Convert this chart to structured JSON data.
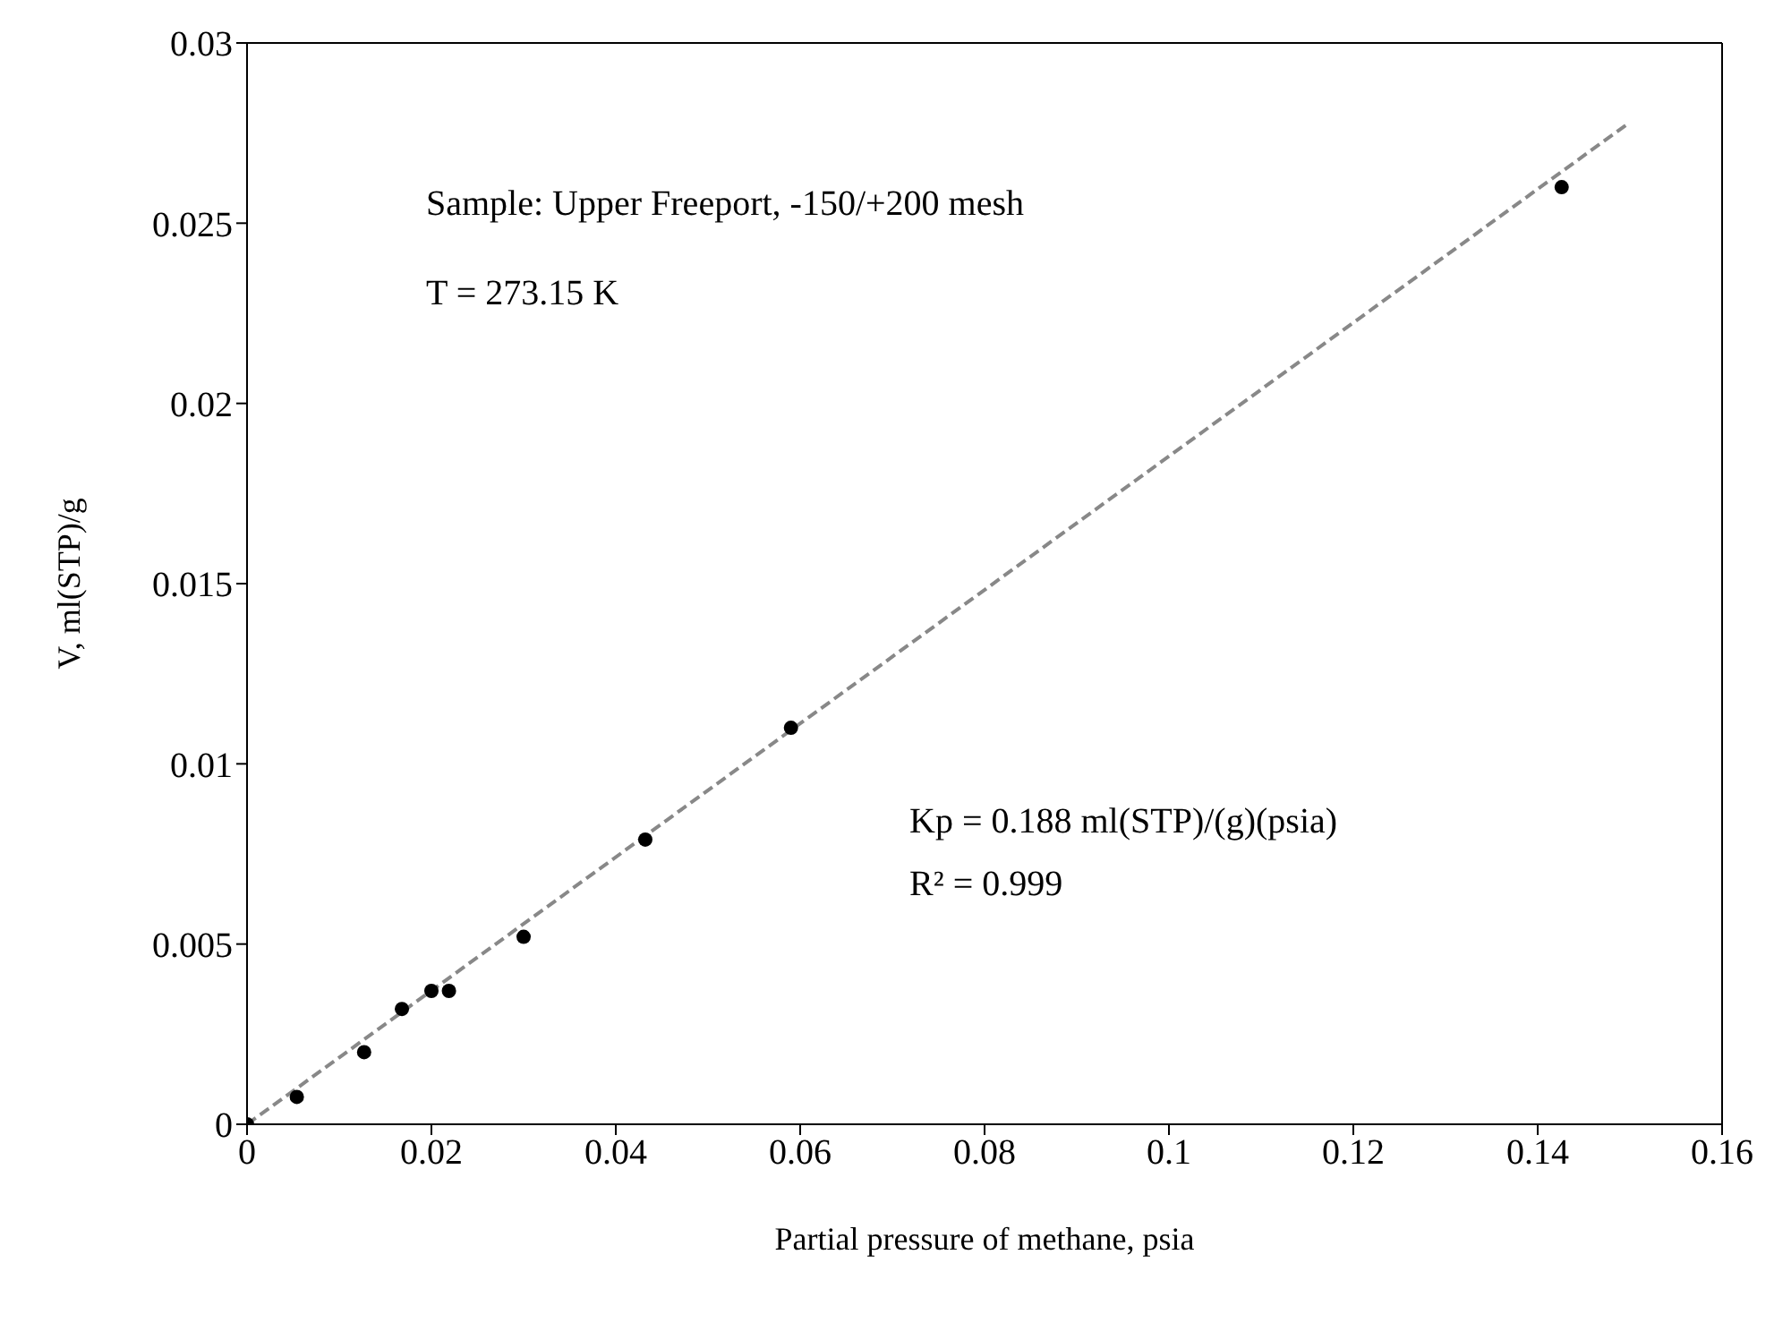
{
  "chart_data": {
    "type": "scatter",
    "xlabel": "Partial pressure of methane, psia",
    "ylabel": "V, ml(STP)/g",
    "annotations": [
      "Sample: Upper Freeport, -150/+200 mesh",
      "T = 273.15 K",
      "Kp = 0.188 ml(STP)/(g)(psia)",
      "R² = 0.999"
    ],
    "xlim": [
      0,
      0.16
    ],
    "xticks": [
      0,
      0.02,
      0.04,
      0.06,
      0.08,
      0.1,
      0.12,
      0.14,
      0.16
    ],
    "ylim": [
      0,
      0.03
    ],
    "yticks": [
      0,
      0.005,
      0.01,
      0.015,
      0.02,
      0.025,
      0.03
    ],
    "grid": false,
    "legend": false,
    "series": [
      {
        "color": "#000000",
        "marker": "circle",
        "x": [
          0,
          0.0054,
          0.0127,
          0.0168,
          0.02,
          0.0219,
          0.03,
          0.0432,
          0.059,
          0.1426
        ],
        "values": [
          0,
          0.00076,
          0.002,
          0.0032,
          0.0037,
          0.0037,
          0.0052,
          0.0079,
          0.011,
          0.026
        ]
      },
      {
        "type": "line",
        "color": "#888888",
        "line_style": "dashed",
        "marker": "none",
        "x": [
          0,
          0.15
        ],
        "values": [
          0,
          0.0278
        ]
      }
    ]
  }
}
